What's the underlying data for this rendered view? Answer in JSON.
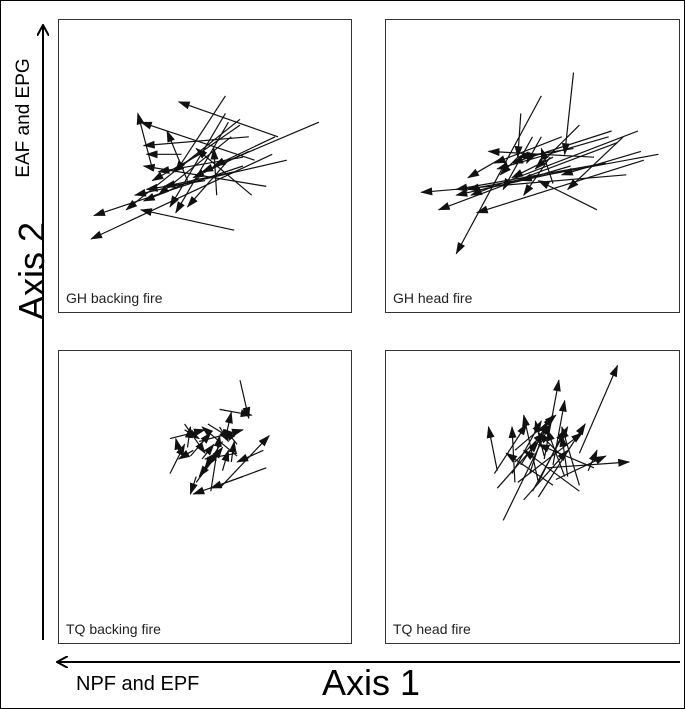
{
  "axes": {
    "axis1_label": "Axis 1",
    "axis1_negative_label": "NPF and EPF",
    "axis2_label": "Axis 2",
    "axis2_positive_label": "EAF and EPG"
  },
  "chart_data": {
    "type": "diagram",
    "panels": [
      {
        "label": "GH backing fire",
        "vectors": [
          [
            0.73,
            0.54,
            0.11,
            0.25
          ],
          [
            0.78,
            0.52,
            0.26,
            0.4
          ],
          [
            0.63,
            0.5,
            0.12,
            0.33
          ],
          [
            0.89,
            0.65,
            0.49,
            0.48
          ],
          [
            0.59,
            0.6,
            0.34,
            0.4
          ],
          [
            0.6,
            0.28,
            0.28,
            0.35
          ],
          [
            0.5,
            0.45,
            0.3,
            0.42
          ],
          [
            0.71,
            0.43,
            0.29,
            0.5
          ],
          [
            0.5,
            0.55,
            0.32,
            0.45
          ],
          [
            0.42,
            0.54,
            0.3,
            0.54
          ],
          [
            0.62,
            0.64,
            0.39,
            0.48
          ],
          [
            0.57,
            0.68,
            0.38,
            0.36
          ],
          [
            0.58,
            0.52,
            0.44,
            0.36
          ],
          [
            0.65,
            0.55,
            0.46,
            0.46
          ],
          [
            0.74,
            0.6,
            0.53,
            0.5
          ],
          [
            0.66,
            0.4,
            0.47,
            0.56
          ],
          [
            0.54,
            0.4,
            0.53,
            0.56
          ],
          [
            0.6,
            0.48,
            0.36,
            0.43
          ],
          [
            0.63,
            0.53,
            0.34,
            0.48
          ],
          [
            0.67,
            0.52,
            0.28,
            0.65
          ],
          [
            0.75,
            0.6,
            0.41,
            0.72
          ],
          [
            0.44,
            0.45,
            0.37,
            0.62
          ],
          [
            0.32,
            0.49,
            0.27,
            0.68
          ],
          [
            0.57,
            0.74,
            0.4,
            0.48
          ],
          [
            0.62,
            0.66,
            0.23,
            0.35
          ],
          [
            0.48,
            0.46,
            0.29,
            0.38
          ],
          [
            0.58,
            0.65,
            0.4,
            0.34
          ],
          [
            0.65,
            0.6,
            0.29,
            0.57
          ]
        ]
      },
      {
        "label": "GH head fire",
        "vectors": [
          [
            0.88,
            0.52,
            0.31,
            0.34
          ],
          [
            0.82,
            0.47,
            0.12,
            0.41
          ],
          [
            0.64,
            0.49,
            0.24,
            0.4
          ],
          [
            0.93,
            0.54,
            0.28,
            0.42
          ],
          [
            0.79,
            0.58,
            0.18,
            0.35
          ],
          [
            0.86,
            0.62,
            0.29,
            0.4
          ],
          [
            0.76,
            0.6,
            0.38,
            0.49
          ],
          [
            0.56,
            0.53,
            0.47,
            0.4
          ],
          [
            0.45,
            0.53,
            0.39,
            0.47
          ],
          [
            0.5,
            0.6,
            0.4,
            0.42
          ],
          [
            0.6,
            0.6,
            0.37,
            0.51
          ],
          [
            0.77,
            0.62,
            0.43,
            0.51
          ],
          [
            0.63,
            0.5,
            0.46,
            0.45
          ],
          [
            0.66,
            0.64,
            0.51,
            0.49
          ],
          [
            0.64,
            0.56,
            0.45,
            0.53
          ],
          [
            0.53,
            0.74,
            0.24,
            0.2
          ],
          [
            0.75,
            0.51,
            0.24,
            0.42
          ],
          [
            0.57,
            0.44,
            0.53,
            0.56
          ],
          [
            0.87,
            0.55,
            0.6,
            0.47
          ],
          [
            0.72,
            0.35,
            0.52,
            0.45
          ],
          [
            0.4,
            0.53,
            0.28,
            0.46
          ],
          [
            0.53,
            0.6,
            0.48,
            0.51
          ],
          [
            0.46,
            0.68,
            0.45,
            0.53
          ],
          [
            0.64,
            0.82,
            0.61,
            0.54
          ],
          [
            0.81,
            0.6,
            0.62,
            0.42
          ],
          [
            0.71,
            0.53,
            0.35,
            0.55
          ],
          [
            0.57,
            0.53,
            0.43,
            0.46
          ]
        ]
      },
      {
        "label": "TQ backing fire",
        "vectors": [
          [
            0.62,
            0.9,
            0.65,
            0.77
          ],
          [
            0.61,
            0.68,
            0.57,
            0.73
          ],
          [
            0.58,
            0.72,
            0.6,
            0.72
          ],
          [
            0.61,
            0.64,
            0.49,
            0.74
          ],
          [
            0.55,
            0.53,
            0.72,
            0.71
          ],
          [
            0.57,
            0.7,
            0.59,
            0.79
          ],
          [
            0.55,
            0.8,
            0.66,
            0.78
          ],
          [
            0.44,
            0.67,
            0.45,
            0.74
          ],
          [
            0.41,
            0.66,
            0.4,
            0.7
          ],
          [
            0.38,
            0.7,
            0.5,
            0.73
          ],
          [
            0.43,
            0.73,
            0.48,
            0.7
          ],
          [
            0.45,
            0.64,
            0.52,
            0.72
          ],
          [
            0.51,
            0.75,
            0.59,
            0.7
          ],
          [
            0.48,
            0.69,
            0.63,
            0.73
          ],
          [
            0.55,
            0.74,
            0.58,
            0.69
          ],
          [
            0.71,
            0.6,
            0.52,
            0.53
          ],
          [
            0.63,
            0.57,
            0.46,
            0.51
          ],
          [
            0.47,
            0.57,
            0.45,
            0.51
          ],
          [
            0.47,
            0.55,
            0.56,
            0.67
          ],
          [
            0.61,
            0.65,
            0.5,
            0.63
          ],
          [
            0.52,
            0.52,
            0.55,
            0.71
          ],
          [
            0.54,
            0.65,
            0.48,
            0.57
          ],
          [
            0.7,
            0.66,
            0.61,
            0.62
          ],
          [
            0.59,
            0.62,
            0.6,
            0.69
          ],
          [
            0.46,
            0.66,
            0.41,
            0.63
          ],
          [
            0.56,
            0.69,
            0.5,
            0.6
          ],
          [
            0.49,
            0.63,
            0.53,
            0.68
          ],
          [
            0.43,
            0.75,
            0.5,
            0.65
          ],
          [
            0.56,
            0.59,
            0.58,
            0.66
          ],
          [
            0.38,
            0.58,
            0.43,
            0.68
          ]
        ]
      },
      {
        "label": "TQ head fire",
        "vectors": [
          [
            0.44,
            0.62,
            0.54,
            0.72
          ],
          [
            0.66,
            0.65,
            0.79,
            0.95
          ],
          [
            0.38,
            0.59,
            0.35,
            0.74
          ],
          [
            0.38,
            0.53,
            0.52,
            0.69
          ],
          [
            0.44,
            0.66,
            0.58,
            0.78
          ],
          [
            0.46,
            0.61,
            0.57,
            0.78
          ],
          [
            0.61,
            0.57,
            0.55,
            0.73
          ],
          [
            0.52,
            0.5,
            0.68,
            0.75
          ],
          [
            0.4,
            0.42,
            0.56,
            0.75
          ],
          [
            0.37,
            0.58,
            0.48,
            0.75
          ],
          [
            0.44,
            0.55,
            0.43,
            0.74
          ],
          [
            0.52,
            0.55,
            0.47,
            0.78
          ],
          [
            0.57,
            0.54,
            0.41,
            0.65
          ],
          [
            0.57,
            0.61,
            0.61,
            0.83
          ],
          [
            0.54,
            0.63,
            0.59,
            0.9
          ],
          [
            0.5,
            0.52,
            0.62,
            0.74
          ],
          [
            0.54,
            0.64,
            0.51,
            0.76
          ],
          [
            0.66,
            0.54,
            0.6,
            0.74
          ],
          [
            0.45,
            0.55,
            0.67,
            0.72
          ],
          [
            0.69,
            0.59,
            0.72,
            0.66
          ],
          [
            0.43,
            0.58,
            0.53,
            0.76
          ],
          [
            0.52,
            0.55,
            0.61,
            0.73
          ],
          [
            0.58,
            0.56,
            0.75,
            0.64
          ],
          [
            0.47,
            0.49,
            0.62,
            0.66
          ],
          [
            0.66,
            0.52,
            0.47,
            0.66
          ],
          [
            0.62,
            0.57,
            0.6,
            0.71
          ],
          [
            0.55,
            0.6,
            0.83,
            0.62
          ],
          [
            0.49,
            0.58,
            0.55,
            0.76
          ],
          [
            0.71,
            0.6,
            0.52,
            0.68
          ],
          [
            0.6,
            0.64,
            0.52,
            0.72
          ]
        ]
      }
    ]
  }
}
